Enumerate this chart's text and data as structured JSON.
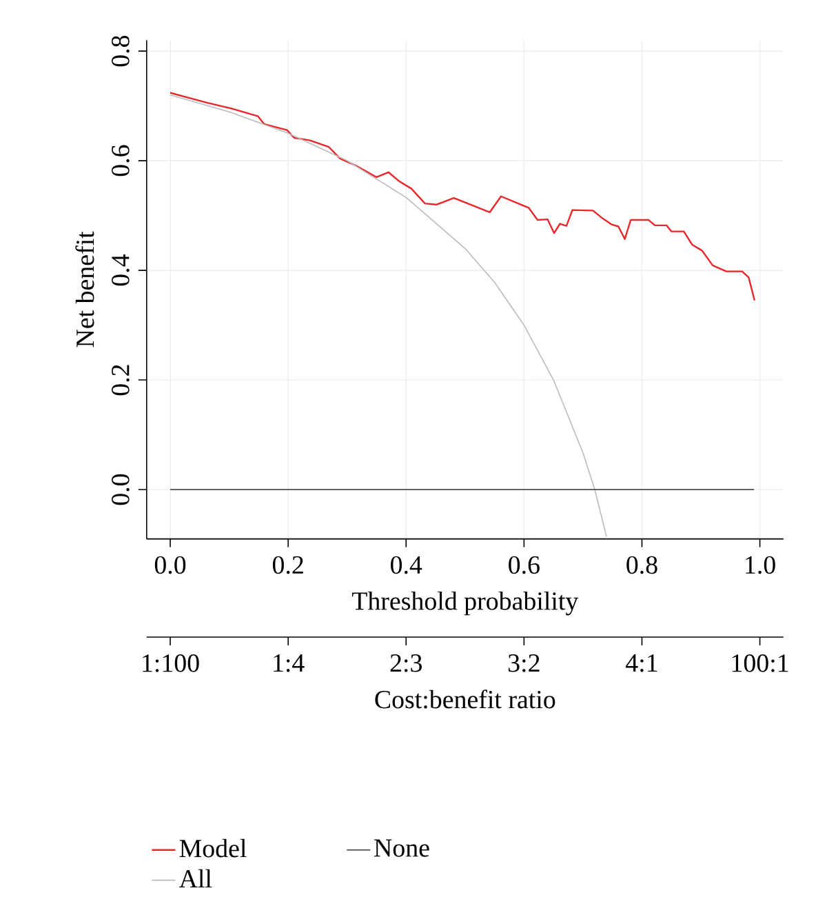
{
  "chart_data": [
    {
      "type": "line",
      "xlabel": "Threshold probability",
      "ylabel": "Net benefit",
      "xlim": [
        -0.04,
        1.04
      ],
      "ylim": [
        -0.09,
        0.82
      ],
      "xticks": [
        {
          "value": 0,
          "label": "0.0"
        },
        0.2,
        0.4,
        0.6,
        0.8,
        {
          "value": 1,
          "label": "1.0"
        }
      ],
      "yticks": [
        {
          "value": 0,
          "label": "0.0"
        },
        0.2,
        0.4,
        0.6,
        0.8
      ],
      "grid": true,
      "legend": "bottom",
      "series": [
        {
          "name": "Model",
          "color": "#e8262a",
          "x": [
            0,
            0.062,
            0.105,
            0.149,
            0.159,
            0.198,
            0.21,
            0.237,
            0.269,
            0.288,
            0.315,
            0.335,
            0.35,
            0.37,
            0.389,
            0.409,
            0.432,
            0.452,
            0.481,
            0.542,
            0.561,
            0.608,
            0.623,
            0.64,
            0.651,
            0.661,
            0.672,
            0.682,
            0.717,
            0.733,
            0.748,
            0.76,
            0.771,
            0.781,
            0.811,
            0.822,
            0.842,
            0.85,
            0.871,
            0.885,
            0.902,
            0.92,
            0.943,
            0.97,
            0.981,
            0.991
          ],
          "values": [
            0.724,
            0.706,
            0.695,
            0.681,
            0.667,
            0.656,
            0.642,
            0.637,
            0.625,
            0.604,
            0.591,
            0.579,
            0.57,
            0.579,
            0.562,
            0.549,
            0.522,
            0.52,
            0.532,
            0.506,
            0.535,
            0.514,
            0.492,
            0.493,
            0.468,
            0.485,
            0.481,
            0.51,
            0.509,
            0.495,
            0.484,
            0.48,
            0.457,
            0.492,
            0.492,
            0.482,
            0.482,
            0.471,
            0.471,
            0.447,
            0.436,
            0.409,
            0.398,
            0.398,
            0.387,
            0.345
          ]
        },
        {
          "name": "All",
          "color": "#bbbbbb",
          "x": [
            0,
            0.1,
            0.2,
            0.3,
            0.4,
            0.5,
            0.55,
            0.6,
            0.65,
            0.7,
            0.72,
            0.74
          ],
          "values": [
            0.72,
            0.689,
            0.65,
            0.6,
            0.533,
            0.44,
            0.378,
            0.3,
            0.2,
            0.067,
            0.0,
            -0.086
          ]
        },
        {
          "name": "None",
          "color": "#333333",
          "x": [
            0,
            0.99
          ],
          "values": [
            0,
            0
          ]
        }
      ]
    },
    {
      "type": "other",
      "xlabel": "Cost:benefit ratio",
      "categories": [
        "1:100",
        "1:4",
        "2:3",
        "3:2",
        "4:1",
        "100:1"
      ]
    }
  ]
}
